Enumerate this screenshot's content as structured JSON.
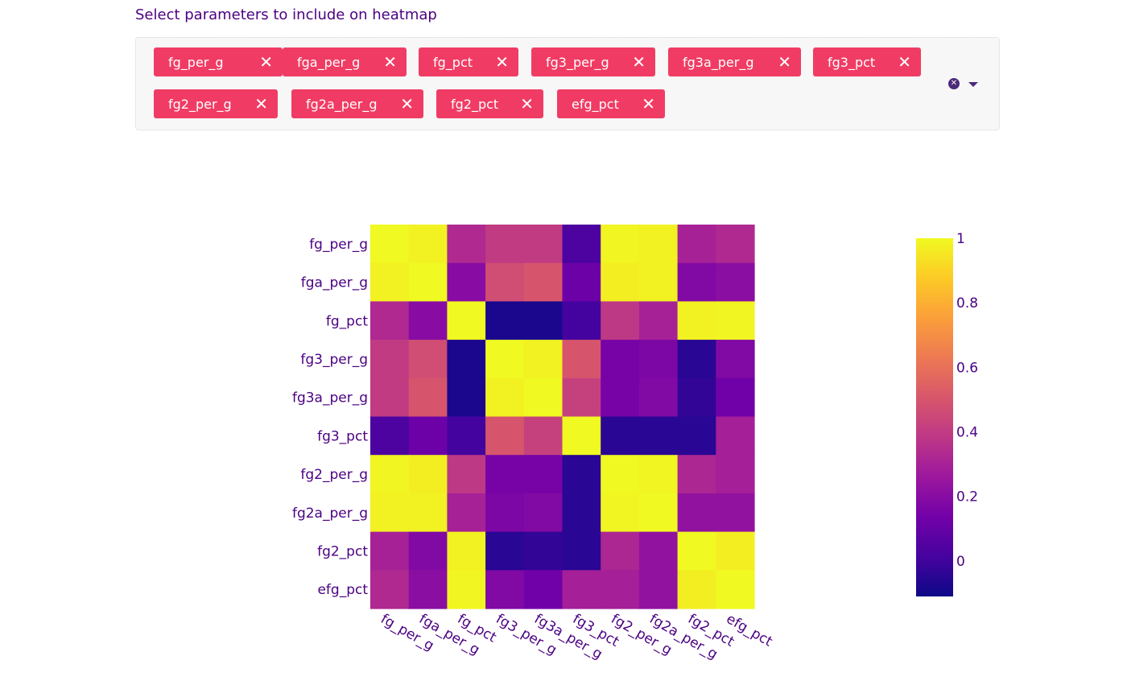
{
  "select": {
    "label": "Select parameters to include on heatmap",
    "chips": [
      {
        "label": "fg_per_g",
        "remove": "✕"
      },
      {
        "label": "fga_per_g",
        "remove": "✕"
      },
      {
        "label": "fg_pct",
        "remove": "✕"
      },
      {
        "label": "fg3_per_g",
        "remove": "✕"
      },
      {
        "label": "fg3a_per_g",
        "remove": "✕"
      },
      {
        "label": "fg3_pct",
        "remove": "✕"
      },
      {
        "label": "fg2_per_g",
        "remove": "✕"
      },
      {
        "label": "fg2a_per_g",
        "remove": "✕"
      },
      {
        "label": "fg2_pct",
        "remove": "✕"
      },
      {
        "label": "efg_pct",
        "remove": "✕"
      }
    ],
    "clear_icon": "clear-all-icon",
    "dropdown_icon": "chevron-down-icon",
    "chip_color": "#f03c64",
    "accent_color": "#4b0082"
  },
  "chart_data": {
    "type": "heatmap",
    "title": "",
    "xlabel": "",
    "ylabel": "",
    "x": [
      "fg_per_g",
      "fga_per_g",
      "fg_pct",
      "fg3_per_g",
      "fg3a_per_g",
      "fg3_pct",
      "fg2_per_g",
      "fg2a_per_g",
      "fg2_pct",
      "efg_pct"
    ],
    "y": [
      "fg_per_g",
      "fga_per_g",
      "fg_pct",
      "fg3_per_g",
      "fg3a_per_g",
      "fg3_pct",
      "fg2_per_g",
      "fg2a_per_g",
      "fg2_pct",
      "efg_pct"
    ],
    "z": [
      [
        1.0,
        0.98,
        0.33,
        0.4,
        0.4,
        0.03,
        0.99,
        0.98,
        0.3,
        0.33
      ],
      [
        0.98,
        1.0,
        0.2,
        0.47,
        0.5,
        0.12,
        0.97,
        0.98,
        0.18,
        0.21
      ],
      [
        0.33,
        0.2,
        1.0,
        -0.08,
        -0.08,
        0.01,
        0.39,
        0.3,
        0.98,
        0.99
      ],
      [
        0.4,
        0.47,
        -0.08,
        1.0,
        0.98,
        0.5,
        0.15,
        0.17,
        -0.05,
        0.18
      ],
      [
        0.4,
        0.5,
        -0.08,
        0.98,
        1.0,
        0.42,
        0.15,
        0.18,
        -0.03,
        0.13
      ],
      [
        0.03,
        0.12,
        0.01,
        0.5,
        0.42,
        1.0,
        -0.05,
        -0.05,
        -0.05,
        0.29
      ],
      [
        0.99,
        0.97,
        0.39,
        0.15,
        0.15,
        -0.05,
        1.0,
        0.99,
        0.32,
        0.29
      ],
      [
        0.98,
        0.98,
        0.3,
        0.17,
        0.18,
        -0.05,
        0.99,
        1.0,
        0.23,
        0.23
      ],
      [
        0.3,
        0.18,
        0.98,
        -0.05,
        -0.03,
        -0.05,
        0.32,
        0.23,
        1.0,
        0.97
      ],
      [
        0.33,
        0.21,
        0.99,
        0.18,
        0.13,
        0.29,
        0.29,
        0.23,
        0.97,
        1.0
      ]
    ],
    "zmin": -0.11,
    "zmax": 1.0,
    "colorscale": [
      "#0d0887",
      "#46039f",
      "#7201a8",
      "#9c179e",
      "#bd3786",
      "#d8576b",
      "#ed7953",
      "#fb9f3a",
      "#fdca26",
      "#f0f921"
    ],
    "colorbar": {
      "tick_values": [
        0,
        0.2,
        0.4,
        0.6,
        0.8,
        1
      ],
      "tick_labels": [
        "0",
        "0.2",
        "0.4",
        "0.6",
        "0.8",
        "1"
      ]
    },
    "tick_color": "#4b0082"
  }
}
